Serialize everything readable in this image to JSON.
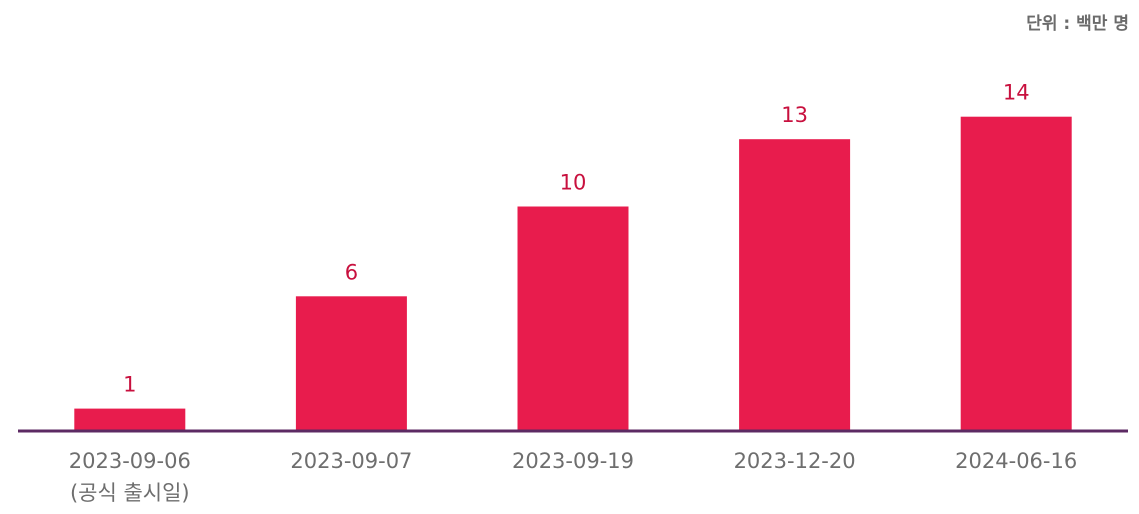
{
  "chart_data": {
    "type": "bar",
    "unit_label": "단위 : 백만 명",
    "categories": [
      "2023-09-06",
      "2023-09-07",
      "2023-09-19",
      "2023-12-20",
      "2024-06-16"
    ],
    "category_notes": [
      "(공식 출시일)",
      "",
      "",
      "",
      ""
    ],
    "values": [
      1,
      6,
      10,
      13,
      14
    ],
    "value_labels": [
      "1",
      "6",
      "10",
      "13",
      "14"
    ],
    "ylim": [
      0,
      15
    ],
    "grid": false,
    "bar_color": "#e81c4d",
    "value_label_color": "#c8103e",
    "axis_color": "#5c2a63",
    "tick_label_color": "#6e6e6e"
  }
}
